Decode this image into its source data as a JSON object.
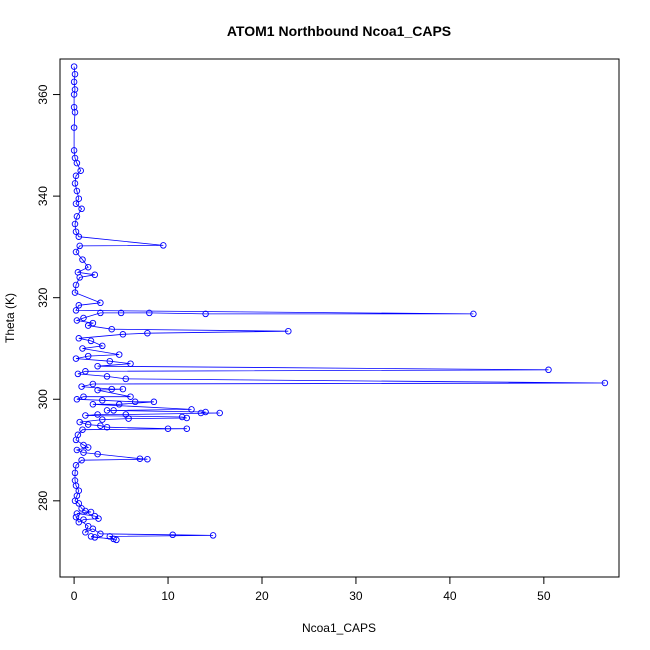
{
  "chart_data": {
    "type": "scatter",
    "title": "ATOM1 Northbound Ncoa1_CAPS",
    "xlabel": "Ncoa1_CAPS",
    "ylabel": "Theta (K)",
    "xlim": [
      -1.5,
      58
    ],
    "ylim": [
      265,
      367
    ],
    "x_ticks": [
      0,
      10,
      20,
      30,
      40,
      50
    ],
    "y_ticks": [
      280,
      300,
      320,
      340,
      360
    ],
    "series_color": "#0000ff",
    "grid": false,
    "legend": "none",
    "marker": "open-circle",
    "connected": true,
    "points": [
      [
        0.0,
        365.5
      ],
      [
        0.1,
        364.0
      ],
      [
        0.0,
        362.5
      ],
      [
        0.1,
        361.0
      ],
      [
        0.0,
        360.0
      ],
      [
        0.0,
        357.5
      ],
      [
        0.1,
        356.5
      ],
      [
        0.0,
        353.5
      ],
      [
        0.0,
        349.0
      ],
      [
        0.1,
        347.5
      ],
      [
        0.3,
        346.5
      ],
      [
        0.7,
        345.0
      ],
      [
        0.2,
        344.0
      ],
      [
        0.1,
        342.5
      ],
      [
        0.3,
        341.0
      ],
      [
        0.5,
        339.5
      ],
      [
        0.2,
        338.5
      ],
      [
        0.8,
        337.5
      ],
      [
        0.3,
        336.0
      ],
      [
        0.1,
        334.5
      ],
      [
        0.2,
        333.0
      ],
      [
        0.5,
        332.0
      ],
      [
        9.5,
        330.3
      ],
      [
        0.6,
        330.2
      ],
      [
        0.2,
        329.0
      ],
      [
        0.9,
        327.5
      ],
      [
        1.5,
        326.0
      ],
      [
        0.4,
        325.0
      ],
      [
        2.2,
        324.5
      ],
      [
        0.6,
        324.0
      ],
      [
        0.2,
        322.5
      ],
      [
        0.1,
        321.0
      ],
      [
        2.8,
        319.0
      ],
      [
        0.5,
        318.5
      ],
      [
        0.2,
        317.5
      ],
      [
        42.5,
        316.8
      ],
      [
        14.0,
        316.8
      ],
      [
        8.0,
        317.0
      ],
      [
        5.0,
        317.0
      ],
      [
        2.8,
        317.0
      ],
      [
        1.0,
        316.0
      ],
      [
        0.3,
        315.5
      ],
      [
        2.0,
        315.0
      ],
      [
        1.5,
        314.5
      ],
      [
        4.0,
        313.8
      ],
      [
        22.8,
        313.4
      ],
      [
        7.8,
        313.0
      ],
      [
        5.2,
        312.8
      ],
      [
        0.5,
        312.0
      ],
      [
        1.8,
        311.5
      ],
      [
        3.0,
        310.5
      ],
      [
        0.9,
        310.0
      ],
      [
        4.8,
        308.8
      ],
      [
        1.5,
        308.5
      ],
      [
        0.2,
        308.0
      ],
      [
        3.8,
        307.5
      ],
      [
        6.0,
        307.0
      ],
      [
        2.5,
        306.5
      ],
      [
        50.5,
        305.8
      ],
      [
        1.2,
        305.5
      ],
      [
        0.4,
        305.0
      ],
      [
        3.5,
        304.5
      ],
      [
        5.5,
        304.0
      ],
      [
        56.5,
        303.2
      ],
      [
        2.0,
        303.0
      ],
      [
        0.8,
        302.5
      ],
      [
        4.0,
        302.0
      ],
      [
        5.2,
        302.0
      ],
      [
        2.5,
        301.8
      ],
      [
        6.0,
        300.5
      ],
      [
        1.0,
        300.5
      ],
      [
        0.3,
        300.0
      ],
      [
        3.0,
        299.8
      ],
      [
        6.5,
        299.5
      ],
      [
        8.5,
        299.5
      ],
      [
        4.8,
        299.0
      ],
      [
        2.0,
        299.0
      ],
      [
        12.5,
        298.0
      ],
      [
        4.2,
        297.8
      ],
      [
        3.5,
        297.8
      ],
      [
        14.0,
        297.5
      ],
      [
        13.5,
        297.3
      ],
      [
        15.5,
        297.3
      ],
      [
        5.5,
        297.0
      ],
      [
        2.5,
        297.0
      ],
      [
        1.2,
        296.8
      ],
      [
        11.5,
        296.5
      ],
      [
        12.0,
        296.3
      ],
      [
        5.8,
        296.2
      ],
      [
        3.0,
        296.0
      ],
      [
        0.6,
        295.5
      ],
      [
        1.5,
        295.0
      ],
      [
        2.8,
        294.8
      ],
      [
        3.5,
        294.5
      ],
      [
        10.0,
        294.2
      ],
      [
        12.0,
        294.2
      ],
      [
        0.9,
        294.0
      ],
      [
        0.4,
        293.0
      ],
      [
        0.2,
        292.0
      ],
      [
        1.0,
        291.0
      ],
      [
        1.5,
        290.5
      ],
      [
        0.3,
        290.0
      ],
      [
        1.0,
        289.5
      ],
      [
        2.5,
        289.2
      ],
      [
        7.0,
        288.3
      ],
      [
        7.8,
        288.2
      ],
      [
        0.8,
        288.0
      ],
      [
        0.2,
        287.0
      ],
      [
        0.1,
        285.5
      ],
      [
        0.1,
        284.0
      ],
      [
        0.2,
        283.0
      ],
      [
        0.5,
        282.0
      ],
      [
        0.3,
        281.0
      ],
      [
        0.1,
        280.0
      ],
      [
        0.5,
        279.5
      ],
      [
        0.8,
        278.5
      ],
      [
        1.2,
        278.0
      ],
      [
        1.8,
        277.8
      ],
      [
        0.3,
        277.5
      ],
      [
        2.2,
        277.0
      ],
      [
        2.6,
        276.5
      ],
      [
        1.0,
        276.3
      ],
      [
        0.5,
        275.8
      ],
      [
        0.2,
        276.8
      ],
      [
        1.5,
        275.0
      ],
      [
        1.2,
        273.8
      ],
      [
        2.0,
        274.5
      ],
      [
        2.8,
        273.5
      ],
      [
        10.5,
        273.3
      ],
      [
        14.8,
        273.2
      ],
      [
        3.8,
        273.0
      ],
      [
        4.2,
        272.5
      ],
      [
        2.2,
        272.8
      ],
      [
        1.8,
        273.0
      ],
      [
        4.5,
        272.3
      ]
    ]
  }
}
